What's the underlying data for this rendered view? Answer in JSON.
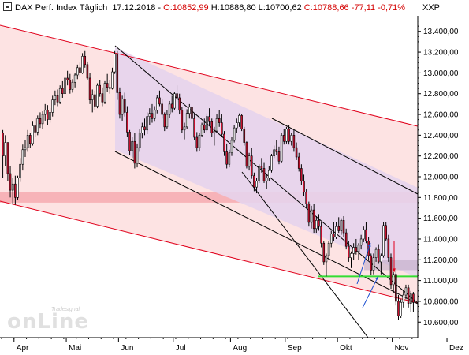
{
  "header": {
    "title": "DAX Perf. Index Täglich",
    "date": "17.12.2018",
    "open": "O:10852,99",
    "high": "H:10886,80",
    "low": "L:10700,62",
    "close": "C:10788,66",
    "change": "-77,11",
    "change_pct": "-0,71%",
    "unit": "XXP"
  },
  "logo": {
    "small": "Tradesignal",
    "big": "onLine"
  },
  "colors": {
    "up": "#ffffff",
    "down": "#c8102e",
    "wick": "#000000",
    "channel_red": "#e0001b",
    "channel_red_fill": "#fde3e3",
    "channel_purple_fill": "#e6d3ec",
    "support_zone": "#f7b3b8",
    "green_line": "#33dd33",
    "arrow": "#1a4fd1"
  },
  "chart_data": {
    "type": "candlestick",
    "instrument": "DAX Perf. Index",
    "ylim": [
      10450,
      13550
    ],
    "y_ticks": [
      10600,
      10800,
      11000,
      11200,
      11400,
      11600,
      11800,
      12000,
      12200,
      12400,
      12600,
      12800,
      13000,
      13200,
      13400
    ],
    "y_tick_labels": [
      "10.600,00",
      "10.800,00",
      "11.000,00",
      "11.200,00",
      "11.400,00",
      "11.600,00",
      "11.800,00",
      "12.000,00",
      "12.200,00",
      "12.400,00",
      "12.600,00",
      "12.800,00",
      "13.000,00",
      "13.200,00",
      "13.400,00"
    ],
    "x_months": [
      "Apr",
      "Mai",
      "Jun",
      "Jul",
      "Aug",
      "Sep",
      "Okt",
      "Nov",
      "Dez"
    ],
    "x_month_start_index": [
      5,
      26,
      47,
      69,
      92,
      114,
      135,
      157,
      179
    ],
    "support_zone": [
      11750,
      11850
    ],
    "resistance_zone": [
      11100,
      11200
    ],
    "green_line_level": 11040,
    "candles": [
      [
        12420,
        12450,
        11990,
        12200
      ],
      [
        12200,
        12400,
        12100,
        12330
      ],
      [
        12330,
        12330,
        11960,
        12030
      ],
      [
        12030,
        12100,
        11800,
        11870
      ],
      [
        11870,
        11990,
        11740,
        11930
      ],
      [
        11930,
        12010,
        11730,
        11800
      ],
      [
        11800,
        12010,
        11780,
        11990
      ],
      [
        11990,
        12180,
        11950,
        12120
      ],
      [
        12120,
        12310,
        12060,
        12260
      ],
      [
        12260,
        12350,
        12190,
        12280
      ],
      [
        12280,
        12450,
        12240,
        12400
      ],
      [
        12400,
        12420,
        12280,
        12320
      ],
      [
        12320,
        12530,
        12300,
        12490
      ],
      [
        12490,
        12560,
        12380,
        12430
      ],
      [
        12430,
        12590,
        12400,
        12560
      ],
      [
        12560,
        12620,
        12470,
        12510
      ],
      [
        12510,
        12630,
        12460,
        12600
      ],
      [
        12600,
        12700,
        12540,
        12640
      ],
      [
        12640,
        12690,
        12500,
        12550
      ],
      [
        12550,
        12660,
        12520,
        12620
      ],
      [
        12620,
        12780,
        12580,
        12740
      ],
      [
        12740,
        12830,
        12690,
        12780
      ],
      [
        12780,
        12840,
        12680,
        12720
      ],
      [
        12720,
        12880,
        12700,
        12850
      ],
      [
        12850,
        12920,
        12760,
        12800
      ],
      [
        12800,
        12980,
        12780,
        12950
      ],
      [
        12950,
        13020,
        12880,
        12930
      ],
      [
        12930,
        12990,
        12800,
        12840
      ],
      [
        12840,
        12940,
        12810,
        12910
      ],
      [
        12910,
        13000,
        12860,
        12980
      ],
      [
        12980,
        13080,
        12940,
        13050
      ],
      [
        13050,
        13100,
        12960,
        13000
      ],
      [
        13000,
        13190,
        12990,
        13160
      ],
      [
        13160,
        13210,
        13050,
        13080
      ],
      [
        13080,
        13110,
        12930,
        12950
      ],
      [
        12950,
        13000,
        12700,
        12740
      ],
      [
        12740,
        12840,
        12620,
        12790
      ],
      [
        12790,
        12830,
        12640,
        12680
      ],
      [
        12680,
        12900,
        12660,
        12880
      ],
      [
        12880,
        12930,
        12770,
        12800
      ],
      [
        12800,
        12860,
        12680,
        12720
      ],
      [
        12720,
        12920,
        12700,
        12900
      ],
      [
        12900,
        12990,
        12820,
        12860
      ],
      [
        12860,
        12930,
        12800,
        12850
      ],
      [
        12850,
        13050,
        12840,
        13010
      ],
      [
        13010,
        13210,
        12990,
        13180
      ],
      [
        13180,
        13210,
        12740,
        12810
      ],
      [
        12810,
        12860,
        12560,
        12600
      ],
      [
        12600,
        12780,
        12540,
        12750
      ],
      [
        12750,
        12810,
        12580,
        12620
      ],
      [
        12620,
        12680,
        12380,
        12430
      ],
      [
        12430,
        12450,
        12210,
        12250
      ],
      [
        12250,
        12380,
        12180,
        12340
      ],
      [
        12340,
        12420,
        12080,
        12130
      ],
      [
        12130,
        12320,
        12090,
        12280
      ],
      [
        12280,
        12460,
        12240,
        12420
      ],
      [
        12420,
        12520,
        12370,
        12480
      ],
      [
        12480,
        12560,
        12400,
        12450
      ],
      [
        12450,
        12620,
        12410,
        12580
      ],
      [
        12580,
        12660,
        12500,
        12610
      ],
      [
        12610,
        12700,
        12520,
        12560
      ],
      [
        12560,
        12680,
        12530,
        12640
      ],
      [
        12640,
        12790,
        12610,
        12760
      ],
      [
        12760,
        12830,
        12680,
        12700
      ],
      [
        12700,
        12750,
        12560,
        12600
      ],
      [
        12600,
        12620,
        12440,
        12480
      ],
      [
        12480,
        12640,
        12460,
        12600
      ],
      [
        12600,
        12730,
        12570,
        12700
      ],
      [
        12700,
        12780,
        12620,
        12660
      ],
      [
        12660,
        12820,
        12640,
        12800
      ],
      [
        12800,
        12880,
        12720,
        12760
      ],
      [
        12760,
        12800,
        12600,
        12640
      ],
      [
        12640,
        12670,
        12420,
        12450
      ],
      [
        12450,
        12520,
        12360,
        12480
      ],
      [
        12480,
        12650,
        12460,
        12610
      ],
      [
        12610,
        12700,
        12560,
        12670
      ],
      [
        12670,
        12690,
        12520,
        12560
      ],
      [
        12560,
        12600,
        12350,
        12380
      ],
      [
        12380,
        12430,
        12240,
        12280
      ],
      [
        12280,
        12420,
        12250,
        12400
      ],
      [
        12400,
        12520,
        12380,
        12500
      ],
      [
        12500,
        12560,
        12420,
        12450
      ],
      [
        12450,
        12610,
        12430,
        12580
      ],
      [
        12580,
        12660,
        12500,
        12530
      ],
      [
        12530,
        12560,
        12380,
        12420
      ],
      [
        12420,
        12480,
        12300,
        12440
      ],
      [
        12440,
        12600,
        12420,
        12560
      ],
      [
        12560,
        12640,
        12480,
        12520
      ],
      [
        12520,
        12600,
        12380,
        12410
      ],
      [
        12410,
        12440,
        12200,
        12240
      ],
      [
        12240,
        12320,
        12080,
        12120
      ],
      [
        12120,
        12260,
        12090,
        12230
      ],
      [
        12230,
        12380,
        12200,
        12350
      ],
      [
        12350,
        12500,
        12330,
        12470
      ],
      [
        12470,
        12560,
        12420,
        12520
      ],
      [
        12520,
        12610,
        12480,
        12590
      ],
      [
        12590,
        12600,
        12440,
        12460
      ],
      [
        12460,
        12480,
        12300,
        12330
      ],
      [
        12330,
        12340,
        12080,
        12100
      ],
      [
        12100,
        12230,
        12060,
        12200
      ],
      [
        12200,
        12280,
        11980,
        12010
      ],
      [
        12010,
        12040,
        11860,
        11900
      ],
      [
        11900,
        11990,
        11840,
        11960
      ],
      [
        11960,
        12120,
        11940,
        12100
      ],
      [
        12100,
        12180,
        12040,
        12080
      ],
      [
        12080,
        12140,
        11940,
        11960
      ],
      [
        11960,
        12020,
        11880,
        11990
      ],
      [
        11990,
        12100,
        11960,
        12060
      ],
      [
        12060,
        12220,
        12040,
        12200
      ],
      [
        12200,
        12300,
        12180,
        12260
      ],
      [
        12260,
        12350,
        12210,
        12240
      ],
      [
        12240,
        12290,
        12120,
        12150
      ],
      [
        12150,
        12420,
        12130,
        12400
      ],
      [
        12400,
        12460,
        12310,
        12340
      ],
      [
        12340,
        12480,
        12320,
        12460
      ],
      [
        12460,
        12500,
        12310,
        12340
      ],
      [
        12340,
        12420,
        12300,
        12400
      ],
      [
        12400,
        12460,
        12240,
        12280
      ],
      [
        12280,
        12330,
        12160,
        12190
      ],
      [
        12190,
        12230,
        12050,
        12080
      ],
      [
        12080,
        12120,
        11920,
        11960
      ],
      [
        11960,
        12020,
        11810,
        11850
      ],
      [
        11850,
        11880,
        11700,
        11740
      ],
      [
        11740,
        11760,
        11520,
        11560
      ],
      [
        11560,
        11720,
        11500,
        11680
      ],
      [
        11680,
        11740,
        11460,
        11500
      ],
      [
        11500,
        11620,
        11460,
        11580
      ],
      [
        11580,
        11640,
        11480,
        11520
      ],
      [
        11520,
        11560,
        11320,
        11360
      ],
      [
        11360,
        11380,
        11150,
        11180
      ],
      [
        11180,
        11260,
        11040,
        11240
      ],
      [
        11240,
        11380,
        11200,
        11360
      ],
      [
        11360,
        11480,
        11320,
        11450
      ],
      [
        11450,
        11560,
        11380,
        11420
      ],
      [
        11420,
        11560,
        11400,
        11520
      ],
      [
        11520,
        11610,
        11460,
        11480
      ],
      [
        11480,
        11600,
        11440,
        11580
      ],
      [
        11580,
        11620,
        11420,
        11460
      ],
      [
        11460,
        11500,
        11300,
        11330
      ],
      [
        11330,
        11380,
        11180,
        11220
      ],
      [
        11220,
        11280,
        11120,
        11260
      ],
      [
        11260,
        11360,
        11200,
        11320
      ],
      [
        11320,
        11400,
        11250,
        11280
      ],
      [
        11280,
        11360,
        11200,
        11340
      ],
      [
        11340,
        11440,
        11300,
        11400
      ],
      [
        11400,
        11520,
        11370,
        11490
      ],
      [
        11490,
        11560,
        11360,
        11380
      ],
      [
        11380,
        11420,
        11200,
        11240
      ],
      [
        11240,
        11260,
        11050,
        11100
      ],
      [
        11100,
        11260,
        11060,
        11220
      ],
      [
        11220,
        11320,
        11180,
        11300
      ],
      [
        11300,
        11350,
        11160,
        11180
      ],
      [
        11180,
        11260,
        11060,
        11240
      ],
      [
        11240,
        11560,
        11220,
        11530
      ],
      [
        11530,
        11560,
        11380,
        11400
      ],
      [
        11400,
        11440,
        11180,
        11220
      ],
      [
        11220,
        11260,
        10920,
        10960
      ],
      [
        10960,
        11080,
        10880,
        11060
      ],
      [
        11060,
        11100,
        10760,
        10800
      ],
      [
        10800,
        10860,
        10620,
        10660
      ],
      [
        10660,
        10820,
        10640,
        10790
      ],
      [
        10790,
        10900,
        10740,
        10860
      ],
      [
        10860,
        10960,
        10820,
        10930
      ],
      [
        10930,
        10960,
        10740,
        10780
      ],
      [
        10780,
        10900,
        10700,
        10870
      ],
      [
        10870,
        10890,
        10700,
        10789
      ]
    ]
  }
}
